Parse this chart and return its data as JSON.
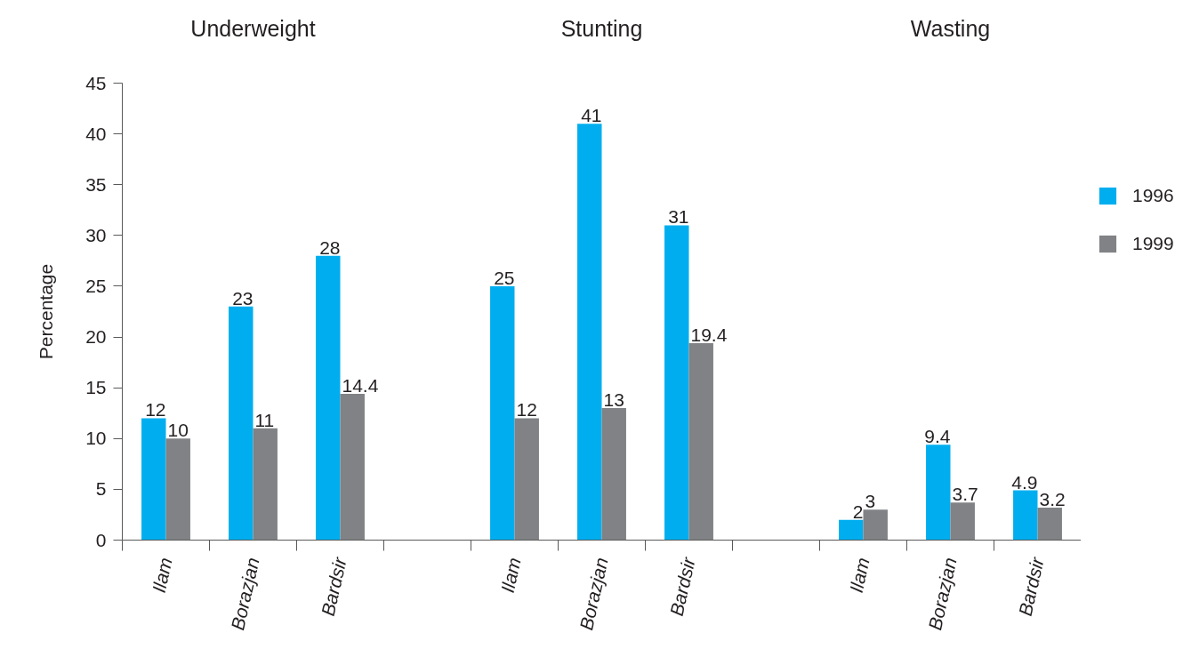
{
  "chart_data": {
    "type": "bar",
    "ylabel": "Percentage",
    "annotations": [
      "Underweight",
      "Stunting",
      "Wasting"
    ],
    "categories": [
      "Ilam",
      "Borazjan",
      "Bardsir",
      null,
      "Ilam",
      "Borazjan",
      "Bardsir",
      null,
      "Ilam",
      "Borazjan",
      "Bardsir"
    ],
    "series": [
      {
        "name": "1996",
        "color": "#00aeef",
        "values": [
          12,
          23,
          28,
          null,
          25,
          41,
          31,
          null,
          2,
          9.4,
          4.9
        ]
      },
      {
        "name": "1999",
        "color": "#808285",
        "values": [
          10,
          11,
          14.4,
          null,
          12,
          13,
          19.4,
          null,
          3,
          3.7,
          3.2
        ]
      }
    ],
    "ylim": [
      0,
      45
    ],
    "yticks": [
      0,
      5,
      10,
      15,
      20,
      25,
      30,
      35,
      40,
      45
    ],
    "grid": false,
    "legend": "right",
    "data_labels": true
  }
}
